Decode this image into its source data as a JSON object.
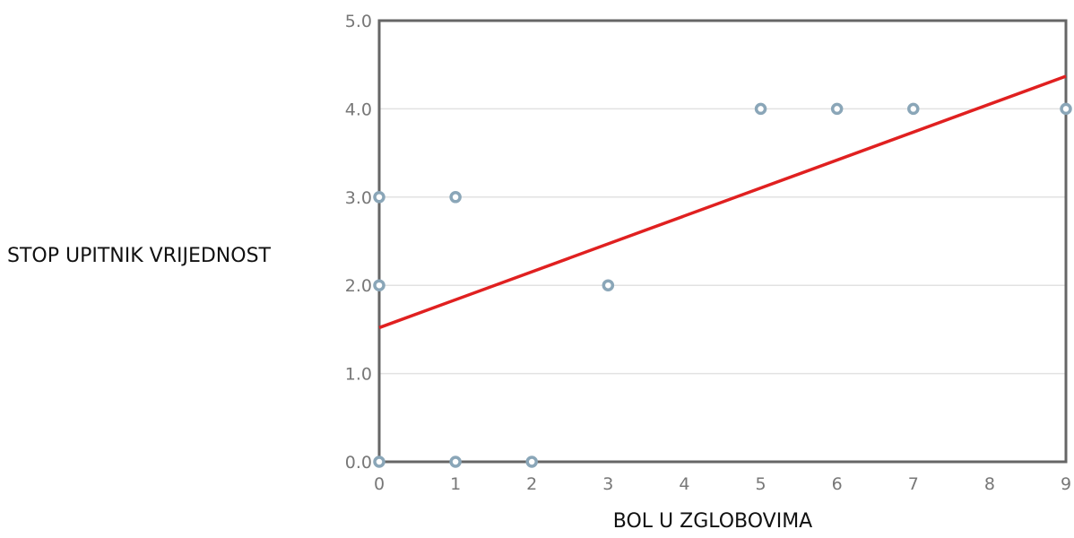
{
  "chart_data": {
    "type": "scatter",
    "title": "",
    "xlabel": "BOL U ZGLOBOVIMA",
    "ylabel": "STOP UPITNIK VRIJEDNOST",
    "xlim": [
      0,
      9
    ],
    "ylim": [
      0,
      5
    ],
    "x_ticks": [
      "0",
      "1",
      "2",
      "3",
      "4",
      "5",
      "6",
      "7",
      "8",
      "9"
    ],
    "y_ticks": [
      "0.0",
      "1.0",
      "2.0",
      "3.0",
      "4.0",
      "5.0"
    ],
    "grid": "horizontal",
    "series": [
      {
        "points": [
          {
            "x": 0,
            "y": 0
          },
          {
            "x": 0,
            "y": 2
          },
          {
            "x": 0,
            "y": 3
          },
          {
            "x": 1,
            "y": 0
          },
          {
            "x": 1,
            "y": 3
          },
          {
            "x": 2,
            "y": 0
          },
          {
            "x": 3,
            "y": 2
          },
          {
            "x": 5,
            "y": 4
          },
          {
            "x": 6,
            "y": 4
          },
          {
            "x": 7,
            "y": 4
          },
          {
            "x": 9,
            "y": 4
          }
        ],
        "color": "#8aa6b8"
      }
    ],
    "trendline": {
      "from": {
        "x": 0,
        "y": 1.52
      },
      "to": {
        "x": 9,
        "y": 4.37
      },
      "color": "#e02020"
    }
  }
}
